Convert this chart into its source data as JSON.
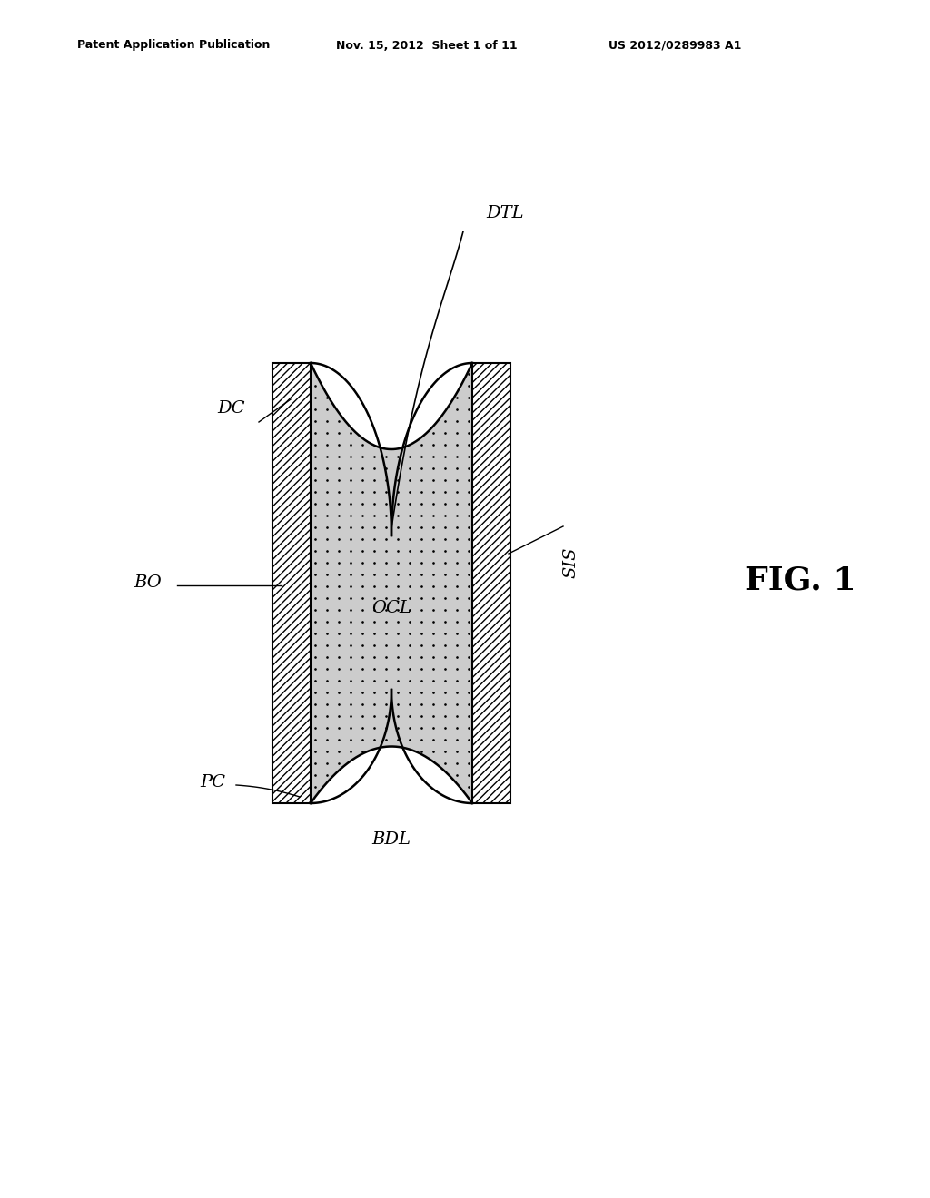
{
  "background_color": "#ffffff",
  "header_left": "Patent Application Publication",
  "header_mid": "Nov. 15, 2012  Sheet 1 of 11",
  "header_right": "US 2012/0289983 A1",
  "fig_label": "FIG. 1",
  "line_color": "#000000",
  "hatch_color": "#000000"
}
